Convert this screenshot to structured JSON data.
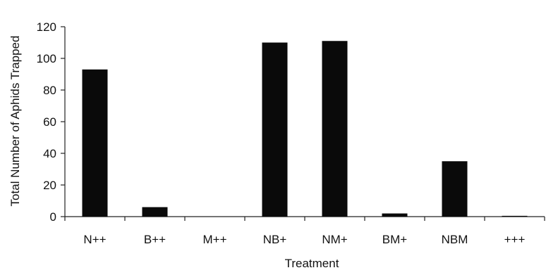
{
  "chart_data": {
    "type": "bar",
    "title": "",
    "xlabel": "Treatment",
    "ylabel": "Total Number of Aphids Trapped",
    "categories": [
      "N++",
      "B++",
      "M++",
      "NB+",
      "NM+",
      "BM+",
      "NBM",
      "+++"
    ],
    "values": [
      93,
      6,
      0,
      110,
      111,
      2,
      35,
      0.5
    ],
    "ylim": [
      0,
      120
    ],
    "yticks": [
      0,
      20,
      40,
      60,
      80,
      100,
      120
    ],
    "grid": false,
    "legend": "none",
    "colors": {
      "bar": "#0a0a0a",
      "axis": "#222222"
    }
  }
}
